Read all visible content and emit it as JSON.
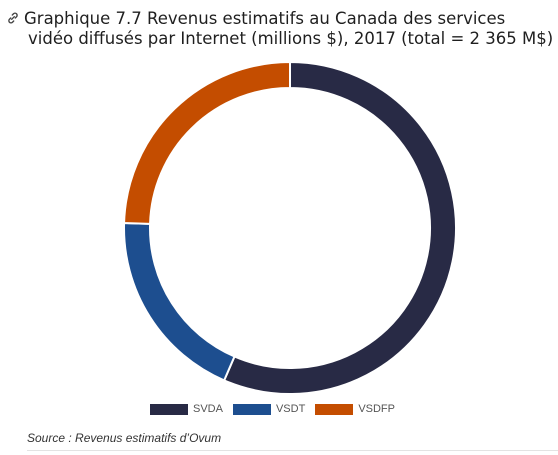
{
  "chart_data": {
    "type": "pie",
    "title_line1": "Graphique 7.7 Revenus estimatifs au Canada des services",
    "title_line2": "vidéo diffusés par Internet (millions $), 2017 (total = 2 365 M$)",
    "categories": [
      "SVDA",
      "VSDT",
      "VSDFP"
    ],
    "values": [
      1336,
      449,
      580
    ],
    "colors": [
      "#282a45",
      "#1d4e8f",
      "#c44d00"
    ],
    "donut": true,
    "legend_position": "bottom",
    "source": "Source : Revenus estimatifs d’Ovum"
  },
  "icons": {
    "title_link": "link-icon"
  }
}
